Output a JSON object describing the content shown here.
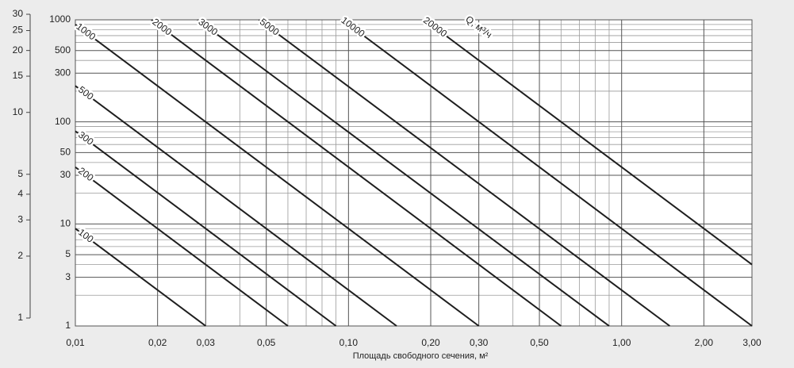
{
  "chart_data": {
    "type": "line",
    "x_label": "Площадь свободного сечения, м²",
    "annotation": "Q, м³/ч",
    "log_x": true,
    "log_y": true,
    "grid": true,
    "color": "#1e1e1e",
    "xlim": [
      0.01,
      3.0
    ],
    "xticks": [
      {
        "value": 0.01,
        "label": "0,01"
      },
      {
        "value": 0.02,
        "label": "0,02"
      },
      {
        "value": 0.03,
        "label": "0,03"
      },
      {
        "value": 0.05,
        "label": "0,05"
      },
      {
        "value": 0.1,
        "label": "0,10"
      },
      {
        "value": 0.2,
        "label": "0,20"
      },
      {
        "value": 0.3,
        "label": "0,30"
      },
      {
        "value": 0.5,
        "label": "0,50"
      },
      {
        "value": 1,
        "label": "1,00"
      },
      {
        "value": 2,
        "label": "2,00"
      },
      {
        "value": 3,
        "label": "3,00"
      }
    ],
    "xgrid": [
      0.04,
      0.06,
      0.07,
      0.08,
      0.09,
      0.4,
      0.6,
      0.7,
      0.8,
      0.9
    ],
    "ylim": [
      1,
      1000
    ],
    "yticks": [
      1,
      3,
      5,
      10,
      30,
      50,
      100,
      300,
      500,
      1000
    ],
    "ygrid": [
      2,
      4,
      6,
      7,
      8,
      9,
      20,
      40,
      60,
      70,
      80,
      90,
      200,
      400,
      600,
      700,
      800,
      900
    ],
    "y2lim": [
      1,
      30
    ],
    "y2ticks": [
      1,
      2,
      3,
      4,
      5,
      10,
      15,
      20,
      25,
      30
    ],
    "series": [
      {
        "name": "100",
        "x": [
          0.01,
          0.03
        ],
        "values": [
          9,
          1
        ]
      },
      {
        "name": "200",
        "x": [
          0.01,
          0.06
        ],
        "values": [
          36,
          1
        ]
      },
      {
        "name": "300",
        "x": [
          0.01,
          0.09
        ],
        "values": [
          81,
          1
        ]
      },
      {
        "name": "500",
        "x": [
          0.01,
          0.15
        ],
        "values": [
          225,
          1
        ]
      },
      {
        "name": "1000",
        "x": [
          0.01,
          0.3
        ],
        "values": [
          900,
          1
        ]
      },
      {
        "name": "2000",
        "x": [
          0.019,
          0.6
        ],
        "values": [
          1000,
          1
        ]
      },
      {
        "name": "3000",
        "x": [
          0.028,
          0.9
        ],
        "values": [
          1000,
          1
        ]
      },
      {
        "name": "5000",
        "x": [
          0.047,
          1.5
        ],
        "values": [
          1000,
          1
        ]
      },
      {
        "name": "10000",
        "x": [
          0.095,
          3.0
        ],
        "values": [
          1000,
          1
        ]
      },
      {
        "name": "20000",
        "x": [
          0.19,
          3.0
        ],
        "values": [
          1000,
          4
        ]
      }
    ]
  }
}
